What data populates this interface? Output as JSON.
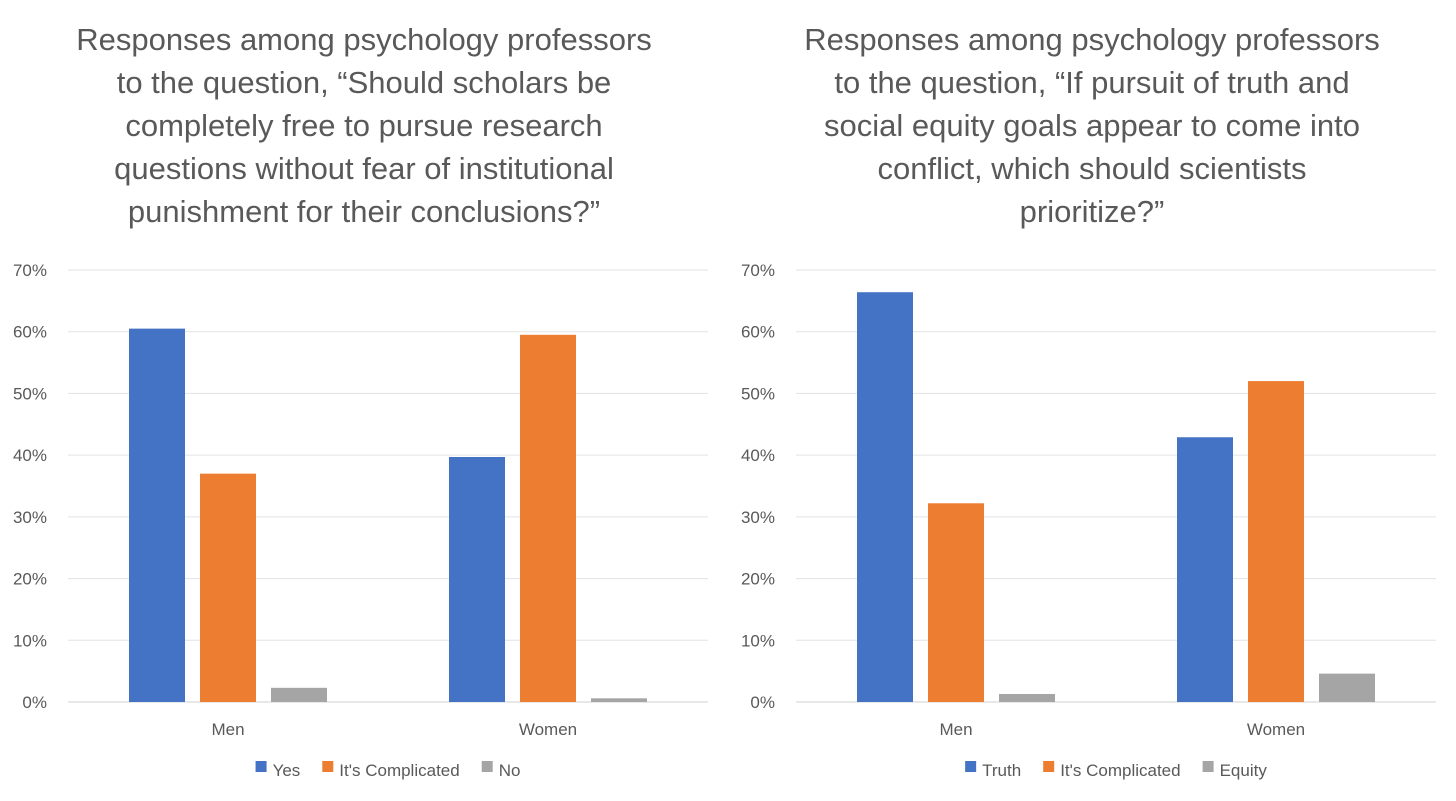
{
  "chart_data": [
    {
      "type": "bar",
      "title_lines": [
        "Responses among psychology professors",
        "to the question, “Should scholars be",
        "completely free to pursue research",
        "questions without fear of institutional",
        "punishment for their conclusions?”"
      ],
      "categories": [
        "Men",
        "Women"
      ],
      "series": [
        {
          "name": "Yes",
          "color": "#4472C4",
          "values": [
            0.605,
            0.397
          ]
        },
        {
          "name": "It's Complicated",
          "color": "#ED7D31",
          "values": [
            0.37,
            0.595
          ]
        },
        {
          "name": "No",
          "color": "#A5A5A5",
          "values": [
            0.023,
            0.006
          ]
        }
      ],
      "ylim": [
        0,
        0.7
      ],
      "yticks": [
        {
          "value": 0,
          "label": "0%"
        },
        {
          "value": 0.1,
          "label": "10%"
        },
        {
          "value": 0.2,
          "label": "20%"
        },
        {
          "value": 0.3,
          "label": "30%"
        },
        {
          "value": 0.4,
          "label": "40%"
        },
        {
          "value": 0.5,
          "label": "50%"
        },
        {
          "value": 0.6,
          "label": "60%"
        },
        {
          "value": 0.7,
          "label": "70%"
        }
      ],
      "grid": true,
      "legend_position": "bottom"
    },
    {
      "type": "bar",
      "title_lines": [
        "Responses among psychology professors",
        "to the question, “If pursuit of truth and",
        "social equity goals appear to come into",
        "conflict, which should scientists",
        "prioritize?”"
      ],
      "categories": [
        "Men",
        "Women"
      ],
      "series": [
        {
          "name": "Truth",
          "color": "#4472C4",
          "values": [
            0.664,
            0.429
          ]
        },
        {
          "name": "It's Complicated",
          "color": "#ED7D31",
          "values": [
            0.322,
            0.52
          ]
        },
        {
          "name": "Equity",
          "color": "#A5A5A5",
          "values": [
            0.013,
            0.046
          ]
        }
      ],
      "ylim": [
        0,
        0.7
      ],
      "yticks": [
        {
          "value": 0,
          "label": "0%"
        },
        {
          "value": 0.1,
          "label": "10%"
        },
        {
          "value": 0.2,
          "label": "20%"
        },
        {
          "value": 0.3,
          "label": "30%"
        },
        {
          "value": 0.4,
          "label": "40%"
        },
        {
          "value": 0.5,
          "label": "50%"
        },
        {
          "value": 0.6,
          "label": "60%"
        },
        {
          "value": 0.7,
          "label": "70%"
        }
      ],
      "grid": true,
      "legend_position": "bottom"
    }
  ]
}
